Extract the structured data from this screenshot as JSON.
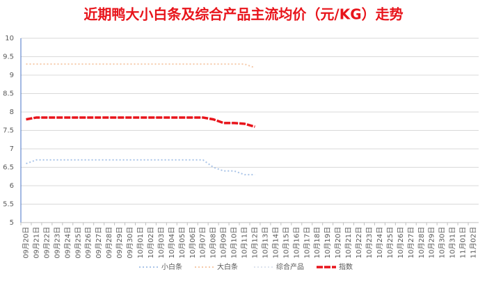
{
  "chart_data": {
    "type": "line",
    "title": "近期鸭大小白条及综合产品主流均价（元/KG）走势",
    "categories": [
      "09月20日",
      "09月21日",
      "09月22日",
      "09月23日",
      "09月24日",
      "09月25日",
      "09月26日",
      "09月27日",
      "09月28日",
      "09月29日",
      "09月30日",
      "10月01日",
      "10月02日",
      "10月03日",
      "10月04日",
      "10月05日",
      "10月06日",
      "10月07日",
      "10月08日",
      "10月09日",
      "10月10日",
      "10月11日",
      "10月12日",
      "10月13日",
      "10月14日",
      "10月15日",
      "10月16日",
      "10月17日",
      "10月18日",
      "10月19日",
      "10月20日",
      "10月21日",
      "10月22日",
      "10月23日",
      "10月24日",
      "10月25日",
      "10月26日",
      "10月27日",
      "10月28日",
      "10月29日",
      "10月30日",
      "10月31日",
      "11月01日",
      "11月02日"
    ],
    "series": [
      {
        "name": "小白条",
        "color": "#a9c4e8",
        "values": [
          6.6,
          6.7,
          6.7,
          6.7,
          6.7,
          6.7,
          6.7,
          6.7,
          6.7,
          6.7,
          6.7,
          6.7,
          6.7,
          6.7,
          6.7,
          6.7,
          6.7,
          6.7,
          6.5,
          6.4,
          6.4,
          6.3,
          6.3,
          null,
          null,
          null,
          null,
          null,
          null,
          null,
          null,
          null,
          null,
          null,
          null,
          null,
          null,
          null,
          null,
          null,
          null,
          null,
          null,
          null
        ]
      },
      {
        "name": "大白条",
        "color": "#f6c9a8",
        "values": [
          9.3,
          9.3,
          9.3,
          9.3,
          9.3,
          9.3,
          9.3,
          9.3,
          9.3,
          9.3,
          9.3,
          9.3,
          9.3,
          9.3,
          9.3,
          9.3,
          9.3,
          9.3,
          9.3,
          9.3,
          9.3,
          9.3,
          9.2,
          null,
          null,
          null,
          null,
          null,
          null,
          null,
          null,
          null,
          null,
          null,
          null,
          null,
          null,
          null,
          null,
          null,
          null,
          null,
          null,
          null
        ]
      },
      {
        "name": "综合产品",
        "color": "#dde3ee",
        "values": [
          7.8,
          7.85,
          7.85,
          7.85,
          7.85,
          7.85,
          7.85,
          7.85,
          7.85,
          7.85,
          7.85,
          7.85,
          7.85,
          7.85,
          7.85,
          7.85,
          7.85,
          7.85,
          7.8,
          7.7,
          7.7,
          7.68,
          7.6,
          null,
          null,
          null,
          null,
          null,
          null,
          null,
          null,
          null,
          null,
          null,
          null,
          null,
          null,
          null,
          null,
          null,
          null,
          null,
          null,
          null
        ]
      },
      {
        "name": "指数",
        "color": "#e8141b",
        "values": [
          7.8,
          7.85,
          7.85,
          7.85,
          7.85,
          7.85,
          7.85,
          7.85,
          7.85,
          7.85,
          7.85,
          7.85,
          7.85,
          7.85,
          7.85,
          7.85,
          7.85,
          7.85,
          7.8,
          7.7,
          7.7,
          7.68,
          7.6,
          null,
          null,
          null,
          null,
          null,
          null,
          null,
          null,
          null,
          null,
          null,
          null,
          null,
          null,
          null,
          null,
          null,
          null,
          null,
          null,
          null
        ]
      }
    ],
    "ylim": [
      5,
      10
    ],
    "yticks": [
      5,
      5.5,
      6,
      6.5,
      7,
      7.5,
      8,
      8.5,
      9,
      9.5,
      10
    ],
    "grid": true
  }
}
